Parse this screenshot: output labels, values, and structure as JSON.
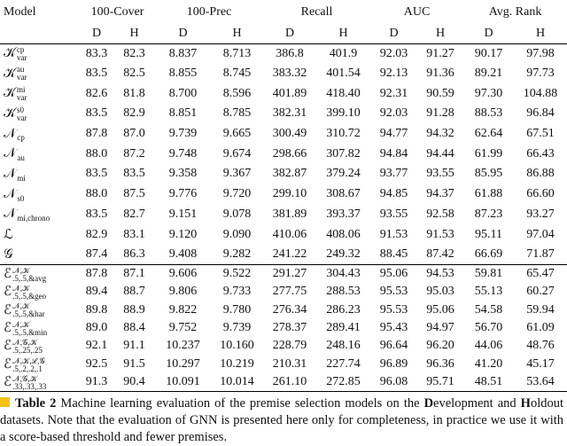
{
  "table": {
    "headers": [
      "Model",
      "100-Cover",
      "100-Prec",
      "Recall",
      "AUC",
      "Avg. Rank"
    ],
    "subheaders": [
      "D",
      "H",
      "D",
      "H",
      "D",
      "H",
      "D",
      "H",
      "D",
      "H"
    ],
    "groups": [
      {
        "rows": [
          {
            "model": {
              "base": "𝒦",
              "sup": "cp",
              "sub": "var"
            },
            "cells": [
              "83.3",
              "82.3",
              "8.837",
              "8.713",
              "386.8",
              "401.9",
              "92.03",
              "91.27",
              "90.17",
              "97.98"
            ]
          },
          {
            "model": {
              "base": "𝒦",
              "sup": "au",
              "sub": "var"
            },
            "cells": [
              "83.5",
              "82.5",
              "8.855",
              "8.745",
              "383.32",
              "401.54",
              "92.13",
              "91.36",
              "89.21",
              "97.73"
            ]
          },
          {
            "model": {
              "base": "𝒦",
              "sup": "mi",
              "sub": "var"
            },
            "cells": [
              "82.6",
              "81.8",
              "8.700",
              "8.596",
              "401.89",
              "418.40",
              "92.31",
              "90.59",
              "97.30",
              "104.88"
            ]
          },
          {
            "model": {
              "base": "𝒦",
              "sup": "s0",
              "sub": "var"
            },
            "cells": [
              "83.5",
              "82.9",
              "8.851",
              "8.785",
              "382.31",
              "399.10",
              "92.03",
              "91.28",
              "88.53",
              "96.84"
            ]
          },
          {
            "model": {
              "base": "𝒩",
              "sub": "cp"
            },
            "cells": [
              "87.8",
              "87.0",
              "9.739",
              "9.665",
              "300.49",
              "310.72",
              "94.77",
              "94.32",
              "62.64",
              "67.51"
            ]
          },
          {
            "model": {
              "base": "𝒩",
              "sub": "au"
            },
            "cells": [
              "88.0",
              "87.2",
              "9.748",
              "9.674",
              "298.66",
              "307.82",
              "94.84",
              "94.44",
              "61.99",
              "66.43"
            ]
          },
          {
            "model": {
              "base": "𝒩",
              "sub": "mi"
            },
            "cells": [
              "83.5",
              "83.5",
              "9.358",
              "9.367",
              "382.87",
              "379.24",
              "93.77",
              "93.55",
              "85.95",
              "86.88"
            ]
          },
          {
            "model": {
              "base": "𝒩",
              "sub": "s0"
            },
            "cells": [
              "88.0",
              "87.5",
              "9.776",
              "9.720",
              "299.10",
              "308.67",
              "94.85",
              "94.37",
              "61.88",
              "66.60"
            ]
          },
          {
            "model": {
              "base": "𝒩",
              "sub": "mi,chrono"
            },
            "cells": [
              "83.5",
              "82.7",
              "9.151",
              "9.078",
              "381.89",
              "393.37",
              "93.55",
              "92.58",
              "87.23",
              "93.27"
            ]
          },
          {
            "model": {
              "base": "ℒ"
            },
            "cells": [
              "82.9",
              "83.1",
              "9.120",
              "9.090",
              "410.06",
              "408.06",
              "91.53",
              "91.53",
              "95.11",
              "97.04"
            ]
          },
          {
            "model": {
              "base": "𝒢"
            },
            "cells": [
              "87.4",
              "86.3",
              "9.408",
              "9.282",
              "241.22",
              "249.32",
              "88.45",
              "87.42",
              "66.69",
              "71.87"
            ]
          }
        ]
      },
      {
        "rows": [
          {
            "model": {
              "base": "ℰ",
              "sup": "𝒩,𝒦",
              "sub": ".5,.5,&avg"
            },
            "cells": [
              "87.8",
              "87.1",
              "9.606",
              "9.522",
              "291.27",
              "304.43",
              "95.06",
              "94.53",
              "59.81",
              "65.47"
            ]
          },
          {
            "model": {
              "base": "ℰ",
              "sup": "𝒩,𝒦",
              "sub": ".5,.5,&geo"
            },
            "cells": [
              "89.4",
              "88.7",
              "9.806",
              "9.733",
              "277.75",
              "288.53",
              "95.53",
              "95.03",
              "55.13",
              "60.27"
            ]
          },
          {
            "model": {
              "base": "ℰ",
              "sup": "𝒩,𝒦",
              "sub": ".5,.5,&har"
            },
            "cells": [
              "89.8",
              "88.9",
              "9.822",
              "9.780",
              "276.34",
              "286.23",
              "95.53",
              "95.06",
              "54.58",
              "59.94"
            ]
          },
          {
            "model": {
              "base": "ℰ",
              "sup": "𝒩,𝒦",
              "sub": ".5,.5,&min"
            },
            "cells": [
              "89.0",
              "88.4",
              "9.752",
              "9.739",
              "278.37",
              "289.41",
              "95.43",
              "94.97",
              "56.70",
              "61.09"
            ]
          },
          {
            "model": {
              "base": "ℰ",
              "sup": "𝒩,𝒢,𝒦",
              "sub": ".5,.25,.25"
            },
            "cells": [
              "92.1",
              "91.1",
              "10.237",
              "10.160",
              "228.79",
              "248.16",
              "96.64",
              "96.20",
              "44.06",
              "48.76"
            ]
          },
          {
            "model": {
              "base": "ℰ",
              "sup": "𝒩,𝒦,ℒ,𝒢",
              "sub": ".5,.2,.2,.1"
            },
            "cells": [
              "92.5",
              "91.5",
              "10.297",
              "10.219",
              "210.31",
              "227.74",
              "96.89",
              "96.36",
              "41.20",
              "45.17"
            ]
          },
          {
            "model": {
              "base": "ℰ",
              "sup": "𝒩,𝒢,𝒦",
              "sub": ".33,.33,.33"
            },
            "cells": [
              "91.3",
              "90.4",
              "10.091",
              "10.014",
              "261.10",
              "272.85",
              "96.08",
              "95.71",
              "48.51",
              "53.64"
            ]
          }
        ]
      }
    ]
  },
  "caption": {
    "label": "Table 2",
    "parts": [
      "Machine learning evaluation of the premise selection models on the ",
      "D",
      "evelopment and ",
      "H",
      "oldout datasets. Note that the evaluation of GNN is presented here only for completeness, in practice we use it with a score-based threshold and fewer premises."
    ]
  }
}
